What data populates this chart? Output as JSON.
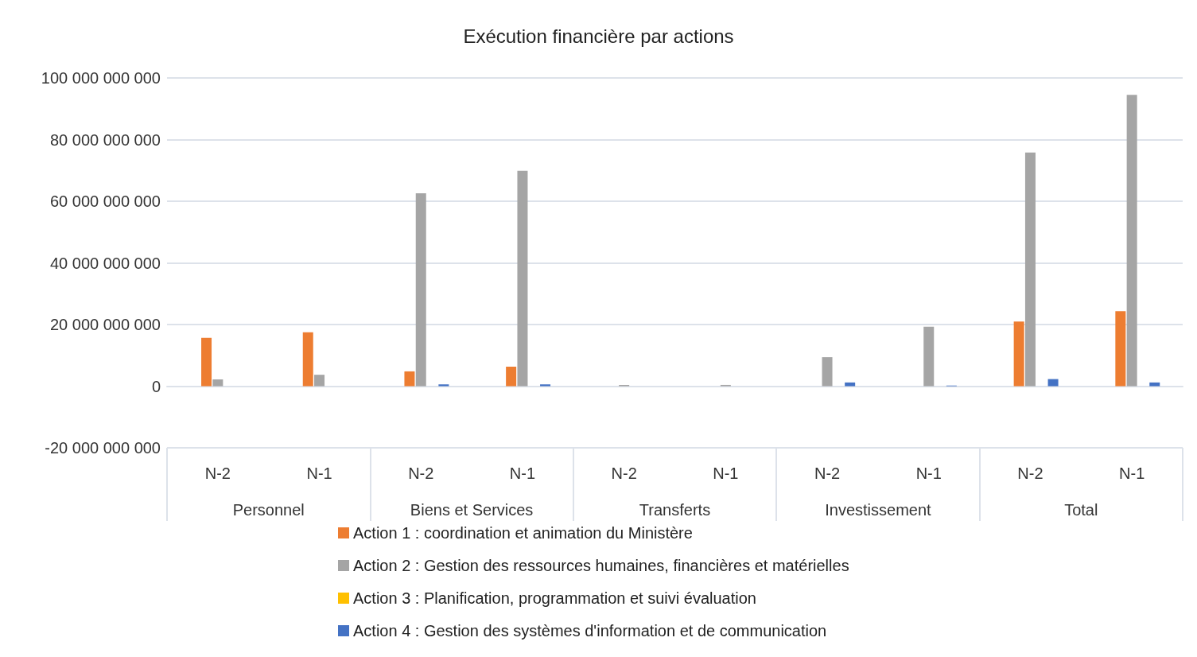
{
  "chart_data": {
    "type": "bar",
    "title": "Exécution financière par actions",
    "categories": [
      "N-2",
      "N-1",
      "N-2",
      "N-1",
      "N-2",
      "N-1",
      "N-2",
      "N-1",
      "N-2",
      "N-1"
    ],
    "annotations": [
      "Personnel",
      "Biens et Services",
      "Transferts",
      "Investissement",
      "Total"
    ],
    "series": [
      {
        "color": "#5b9bd5",
        "values": [
          0,
          0,
          0,
          0,
          0,
          0,
          0,
          0,
          0,
          0
        ]
      },
      {
        "name": "Action 1 : coordination et animation du Ministère",
        "color": "#ed7d31",
        "values": [
          15700000000.0,
          17500000000.0,
          4800000000.0,
          6300000000.0,
          0,
          0,
          0,
          0,
          21000000000.0,
          24300000000.0
        ]
      },
      {
        "name": "Action 2 : Gestion des ressources humaines, financières et matérielles",
        "color": "#a5a5a5",
        "values": [
          2200000000.0,
          3700000000.0,
          62600000000.0,
          69900000000.0,
          400000000.0,
          400000000.0,
          9400000000.0,
          19300000000.0,
          75800000000.0,
          94500000000.0
        ]
      },
      {
        "name": "Action 3 : Planification, programmation et suivi évaluation",
        "color": "#ffc000",
        "values": [
          0,
          0,
          0,
          0,
          0,
          0,
          0,
          0,
          0,
          0
        ]
      },
      {
        "name": "Action 4 : Gestion des systèmes d'information et de communication",
        "color": "#4472c4",
        "values": [
          0,
          0,
          600000000.0,
          600000000.0,
          0,
          0,
          1200000000.0,
          200000000.0,
          2300000000.0,
          1200000000.0
        ]
      }
    ],
    "ylim": [
      -20000000000,
      100000000000
    ],
    "yticks": [
      {
        "value": -20000000000,
        "label": "-20 000 000 000"
      },
      {
        "value": 0,
        "label": "0"
      },
      {
        "value": 20000000000,
        "label": "20 000 000 000"
      },
      {
        "value": 40000000000,
        "label": "40 000 000 000"
      },
      {
        "value": 60000000000,
        "label": "60 000 000 000"
      },
      {
        "value": 80000000000,
        "label": "80 000 000 000"
      },
      {
        "value": 100000000000,
        "label": "100 000 000 000"
      }
    ],
    "grid": "y",
    "legend": "bottom"
  }
}
